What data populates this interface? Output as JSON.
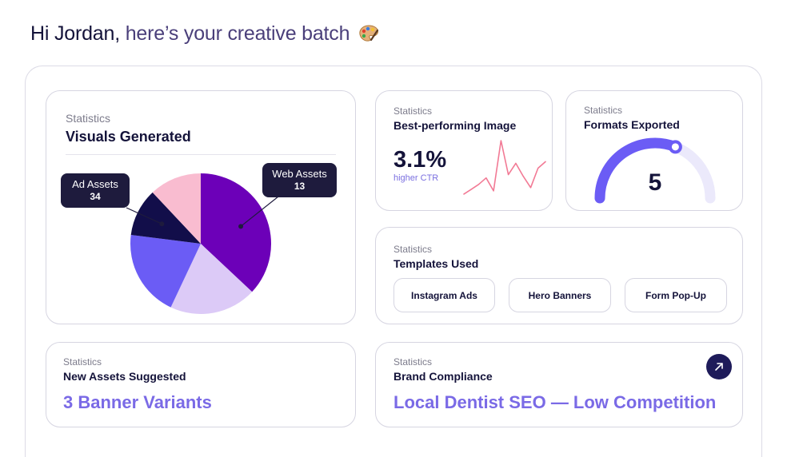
{
  "greeting": {
    "name": "Hi Jordan,",
    "rest": "here’s your creative batch",
    "emoji": "palette-icon"
  },
  "colors": {
    "accent": "#7a6ae6",
    "navy": "#14133a",
    "pie_purple": "#6c00b8",
    "pie_lavender": "#dccaf7",
    "pie_indigo": "#6b5cf5",
    "pie_navy": "#120e4a",
    "pie_pink": "#f9bcd0",
    "sparkline": "#f27a95",
    "gauge_fill": "#6b5cf5",
    "gauge_track": "#ebe9fb"
  },
  "visuals": {
    "eyebrow": "Statistics",
    "title": "Visuals Generated",
    "callout_ad": {
      "label": "Ad Assets",
      "value": "34"
    },
    "callout_web": {
      "label": "Web Assets",
      "value": "13"
    }
  },
  "best_image": {
    "eyebrow": "Statistics",
    "title": "Best-performing Image",
    "value": "3.1%",
    "caption": "higher CTR"
  },
  "formats": {
    "eyebrow": "Statistics",
    "title": "Formats Exported",
    "value": "5",
    "level": 0.62
  },
  "templates": {
    "eyebrow": "Statistics",
    "title": "Templates Used",
    "items": [
      "Instagram Ads",
      "Hero Banners",
      "Form Pop-Up"
    ]
  },
  "new_assets": {
    "eyebrow": "Statistics",
    "title": "New Assets Suggested",
    "value": "3 Banner Variants"
  },
  "brand": {
    "eyebrow": "Statistics",
    "title": "Brand Compliance",
    "value": "Local Dentist SEO — Low Competition",
    "open_icon": "arrow-up-right-icon"
  },
  "chart_data": [
    {
      "type": "pie",
      "title": "Visuals Generated",
      "slices": [
        {
          "name": "Web Assets",
          "fraction": 0.37,
          "color": "#6c00b8"
        },
        {
          "name": "",
          "fraction": 0.2,
          "color": "#dccaf7"
        },
        {
          "name": "",
          "fraction": 0.2,
          "color": "#6b5cf5"
        },
        {
          "name": "Ad Assets",
          "fraction": 0.11,
          "color": "#120e4a"
        },
        {
          "name": "",
          "fraction": 0.12,
          "color": "#f9bcd0"
        }
      ]
    },
    {
      "type": "line",
      "title": "Best-performing Image",
      "values": [
        2,
        5,
        8,
        12,
        4,
        35,
        14,
        21,
        13,
        6,
        18,
        22
      ],
      "color": "#f27a95"
    }
  ]
}
